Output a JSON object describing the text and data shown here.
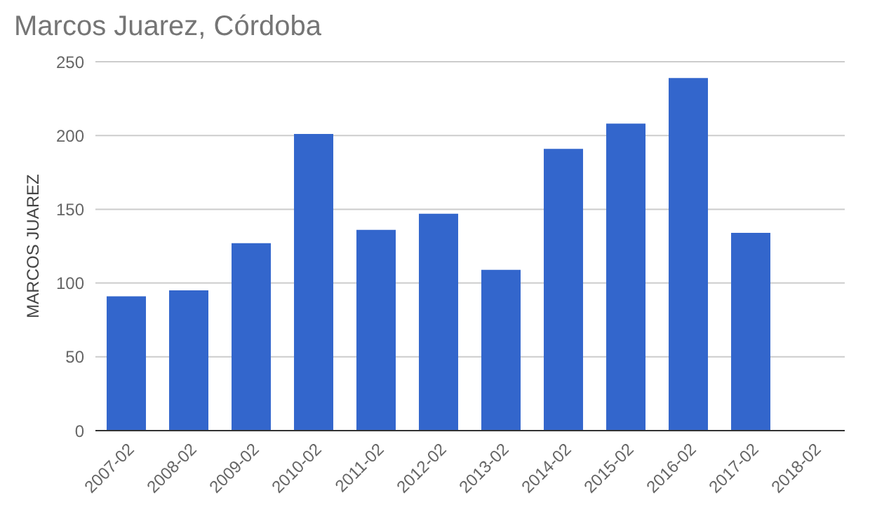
{
  "chart_data": {
    "type": "bar",
    "title": "Marcos Juarez, Córdoba",
    "ylabel": "MARCOS JUAREZ",
    "categories": [
      "2007-02",
      "2008-02",
      "2009-02",
      "2010-02",
      "2011-02",
      "2012-02",
      "2013-02",
      "2014-02",
      "2015-02",
      "2016-02",
      "2017-02",
      "2018-02"
    ],
    "values": [
      91,
      95,
      127,
      201,
      136,
      147,
      109,
      191,
      208,
      239,
      134,
      null
    ],
    "color": "#3366cc",
    "ylim": [
      0,
      250
    ],
    "yticks": [
      0,
      50,
      100,
      150,
      200,
      250
    ],
    "grid": "y"
  }
}
